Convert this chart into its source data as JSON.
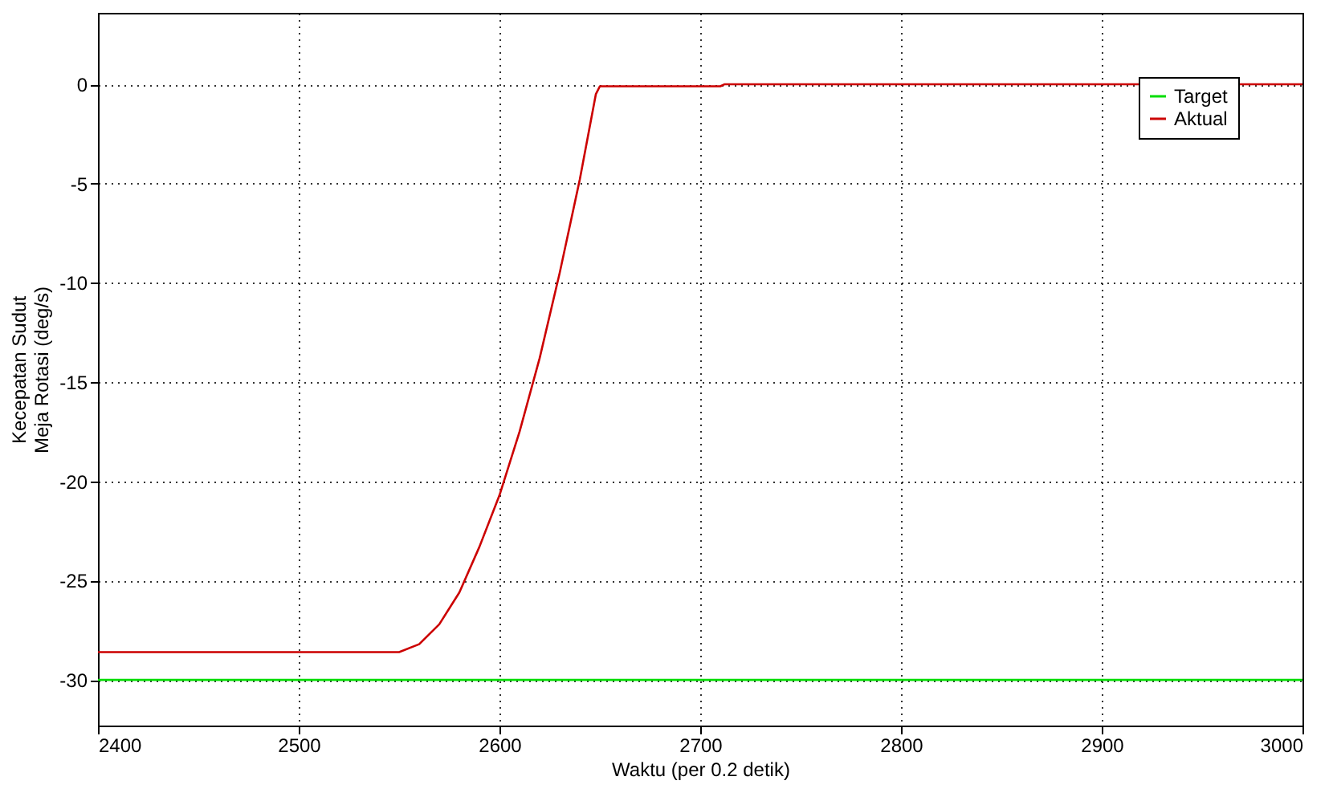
{
  "chart_data": {
    "type": "line",
    "xlabel": "Waktu (per 0.2 detik)",
    "ylabel": "Kecepatan Sudut\nMeja Rotasi (deg/s)",
    "xlim": [
      2400,
      3000
    ],
    "xticks": [
      2400,
      2500,
      2600,
      2700,
      2800,
      2900,
      3000
    ],
    "ylim": [
      -32.3,
      3.6
    ],
    "yticks": [
      -30,
      -25,
      -20,
      -15,
      -10,
      -5,
      0
    ],
    "grid": true,
    "legend": "top right",
    "series": [
      {
        "name": "Target",
        "color": "#00dd00",
        "x": [
          2400,
          3000
        ],
        "values": [
          -30,
          -30
        ]
      },
      {
        "name": "Aktual",
        "color": "#cc0000",
        "x": [
          2400,
          2550,
          2560,
          2570,
          2580,
          2590,
          2600,
          2610,
          2620,
          2630,
          2640,
          2648,
          2650,
          2710,
          2712,
          3000
        ],
        "values": [
          -28.6,
          -28.6,
          -28.2,
          -27.2,
          -25.6,
          -23.3,
          -20.7,
          -17.5,
          -13.8,
          -9.5,
          -4.8,
          -0.5,
          -0.1,
          -0.1,
          0,
          0
        ]
      }
    ]
  }
}
